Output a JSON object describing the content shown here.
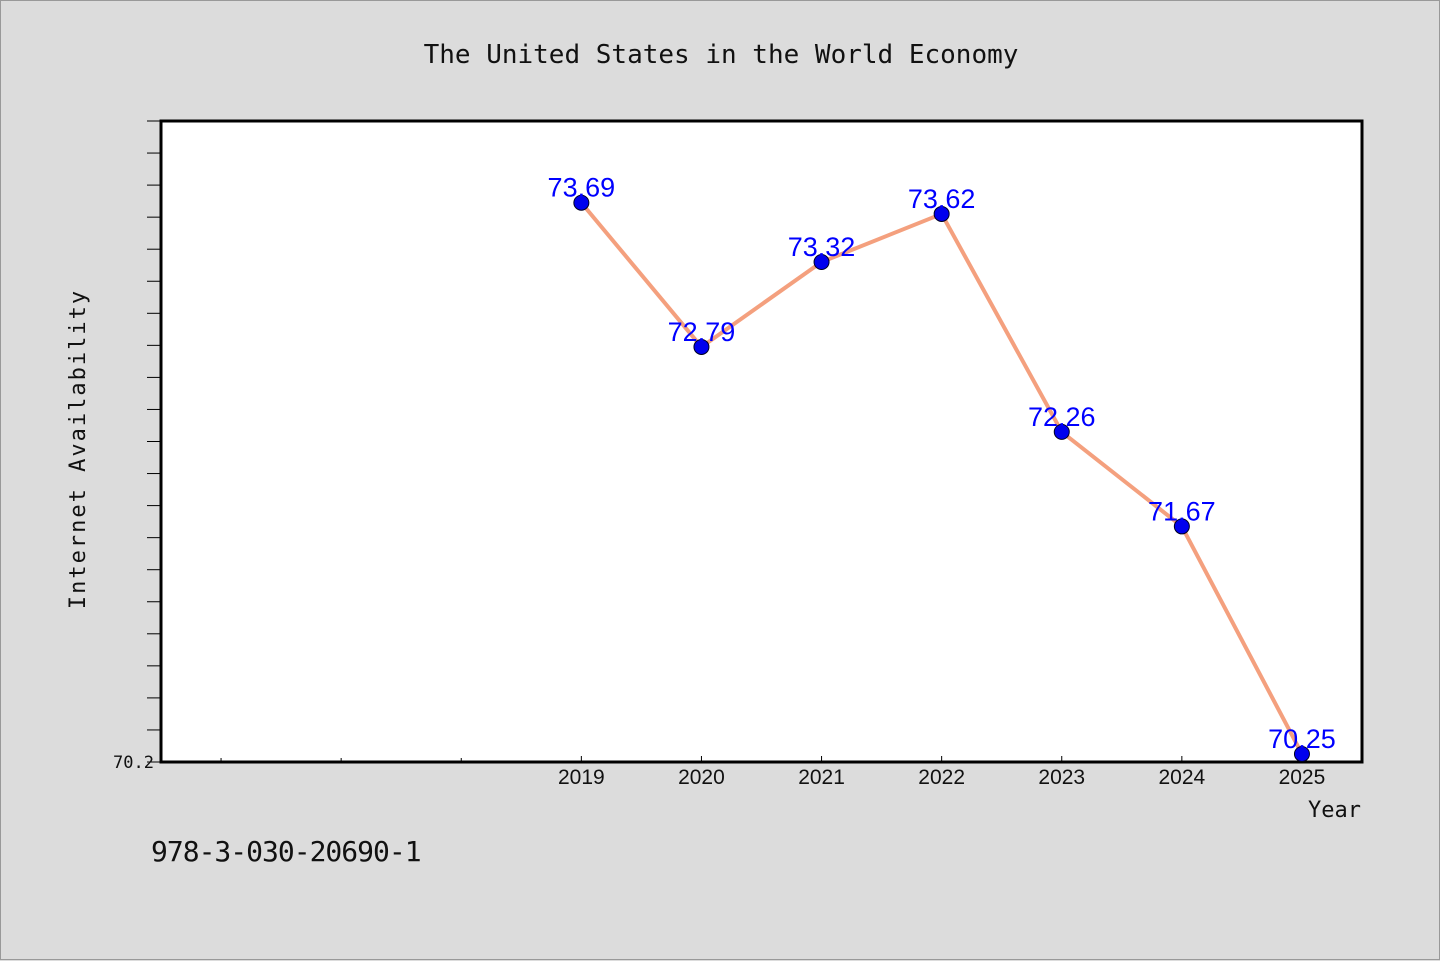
{
  "chart_data": {
    "type": "line",
    "title": "The United States in the World Economy",
    "xlabel": "Year",
    "ylabel": "Internet Availability",
    "categories": [
      "2019",
      "2020",
      "2021",
      "2022",
      "2023",
      "2024",
      "2025"
    ],
    "values": [
      73.69,
      72.79,
      73.32,
      73.62,
      72.26,
      71.67,
      70.25
    ],
    "data_labels": [
      "73.69",
      "72.79",
      "73.32",
      "73.62",
      "72.26",
      "71.67",
      "70.25"
    ],
    "y_tick_label": "70.2",
    "ylim": [
      70.2,
      74.2
    ],
    "x_range": [
      2015.5,
      2025.5
    ],
    "grid": false,
    "line_color": "#f4a07e",
    "marker_color": "#0000ee",
    "label_color": "#0000ff"
  },
  "footer": {
    "isbn": "978-3-030-20690-1"
  }
}
